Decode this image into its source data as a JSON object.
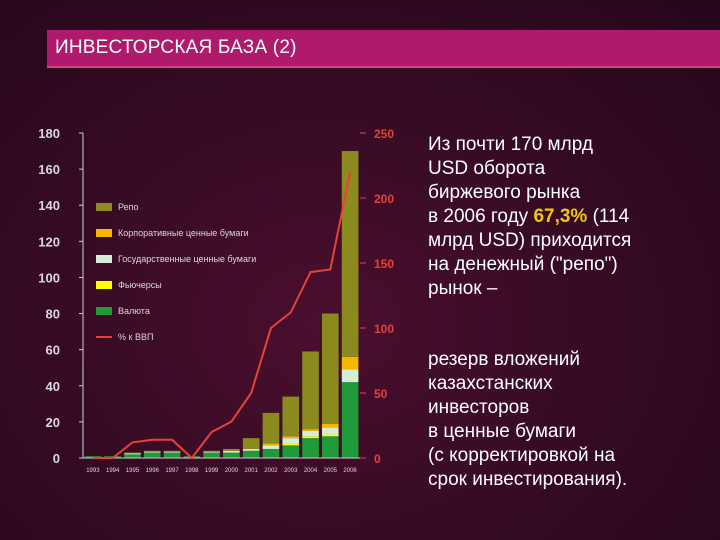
{
  "header": {
    "title": "ИНВЕСТОРСКАЯ БАЗА (2)"
  },
  "colors": {
    "title_bar": "#b01a6c",
    "repo": "#8a8a1f",
    "corporate": "#f5b800",
    "government": "#d6ecd6",
    "futures": "#ffff00",
    "currency": "#1f9a3a",
    "gdp_line": "#e8403a",
    "highlight": "#f1c40f"
  },
  "chart_data": {
    "type": "bar",
    "categories": [
      "1993",
      "1994",
      "1995",
      "1996",
      "1997",
      "1998",
      "1999",
      "2000",
      "2001",
      "2002",
      "2003",
      "2004",
      "2005",
      "2006"
    ],
    "series": [
      {
        "name": "Валюта",
        "values": [
          1,
          1,
          2,
          3,
          3,
          1,
          3,
          3,
          4,
          5,
          7,
          11,
          12,
          42
        ]
      },
      {
        "name": "Фьючерсы",
        "values": [
          0,
          0,
          0,
          0,
          0,
          0,
          0,
          0,
          0,
          0,
          1,
          1,
          1,
          0
        ]
      },
      {
        "name": "Государственные ценные бумаги",
        "values": [
          0,
          0,
          0.5,
          0.5,
          0.5,
          0,
          0.5,
          1,
          1,
          2,
          3,
          3,
          4,
          7
        ]
      },
      {
        "name": "Корпоративные ценные бумаги",
        "values": [
          0,
          0,
          0,
          0,
          0,
          0,
          0,
          0,
          0,
          1,
          1,
          1,
          2,
          7
        ]
      },
      {
        "name": "Репо",
        "values": [
          0,
          0,
          0.5,
          0.5,
          0.5,
          0,
          0.5,
          1,
          6,
          17,
          22,
          43,
          61,
          114
        ]
      }
    ],
    "line_series": {
      "name": "% к ВВП",
      "values": [
        0,
        0,
        12,
        14,
        14,
        0,
        20,
        28,
        50,
        100,
        112,
        143,
        145,
        220
      ]
    },
    "y_left": {
      "ylim": [
        0,
        180
      ],
      "ticks": [
        "0",
        "20",
        "40",
        "60",
        "80",
        "100",
        "120",
        "140",
        "160",
        "180"
      ]
    },
    "y_right": {
      "ylim": [
        0,
        250
      ],
      "ticks": [
        "0",
        "50",
        "100",
        "150",
        "200",
        "250"
      ]
    },
    "legend_position": "left"
  },
  "text": {
    "para1_lines": [
      "Из почти 170 млрд",
      "USD оборота",
      "биржевого рынка"
    ],
    "para1_line4_pre": "в 2006 году ",
    "para1_highlight": "67,3%",
    "para1_line4_post": " (114",
    "para1_tail_lines": [
      "млрд USD) приходится",
      "на денежный (\"репо\")",
      "рынок –"
    ],
    "para2_lines": [
      "резерв вложений",
      "казахстанских",
      "инвесторов",
      "в ценные бумаги",
      "(с корректировкой на",
      "срок инвестирования)."
    ]
  }
}
